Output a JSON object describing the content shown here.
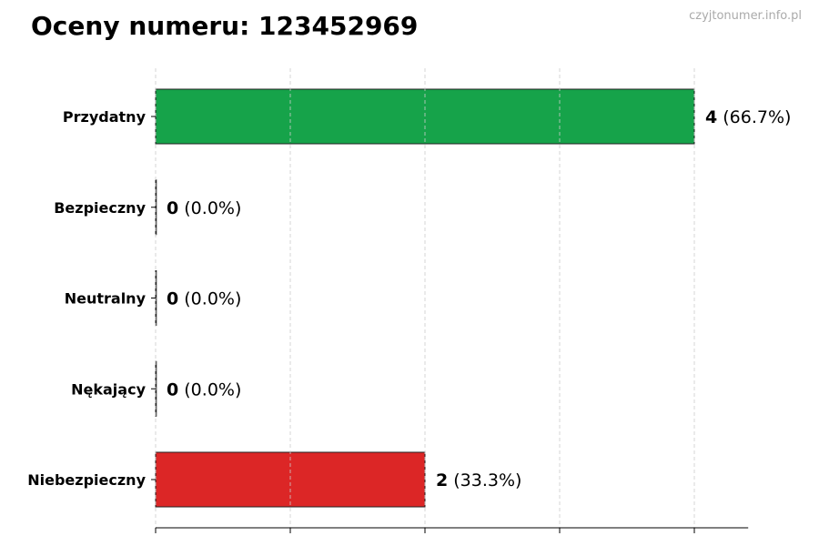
{
  "title": "Oceny numeru: 123452969",
  "watermark": "czyjtonumer.info.pl",
  "chart_data": {
    "type": "bar",
    "orientation": "horizontal",
    "title": "Oceny numeru: 123452969",
    "categories": [
      "Przydatny",
      "Bezpieczny",
      "Neutralny",
      "Nękający",
      "Niebezpieczny"
    ],
    "values": [
      4,
      0,
      0,
      0,
      2
    ],
    "data_labels": [
      {
        "count": "4",
        "percent": "(66.7%)"
      },
      {
        "count": "0",
        "percent": "(0.0%)"
      },
      {
        "count": "0",
        "percent": "(0.0%)"
      },
      {
        "count": "0",
        "percent": "(0.0%)"
      },
      {
        "count": "2",
        "percent": "(33.3%)"
      }
    ],
    "colors": [
      "#16a34a",
      "#16a34a",
      "#16a34a",
      "#dc2626",
      "#dc2626"
    ],
    "xlim": [
      0,
      4.4
    ],
    "xticks": [
      0,
      1,
      2,
      3,
      4
    ],
    "grid": "x dashed",
    "xlabel": "",
    "ylabel": ""
  }
}
